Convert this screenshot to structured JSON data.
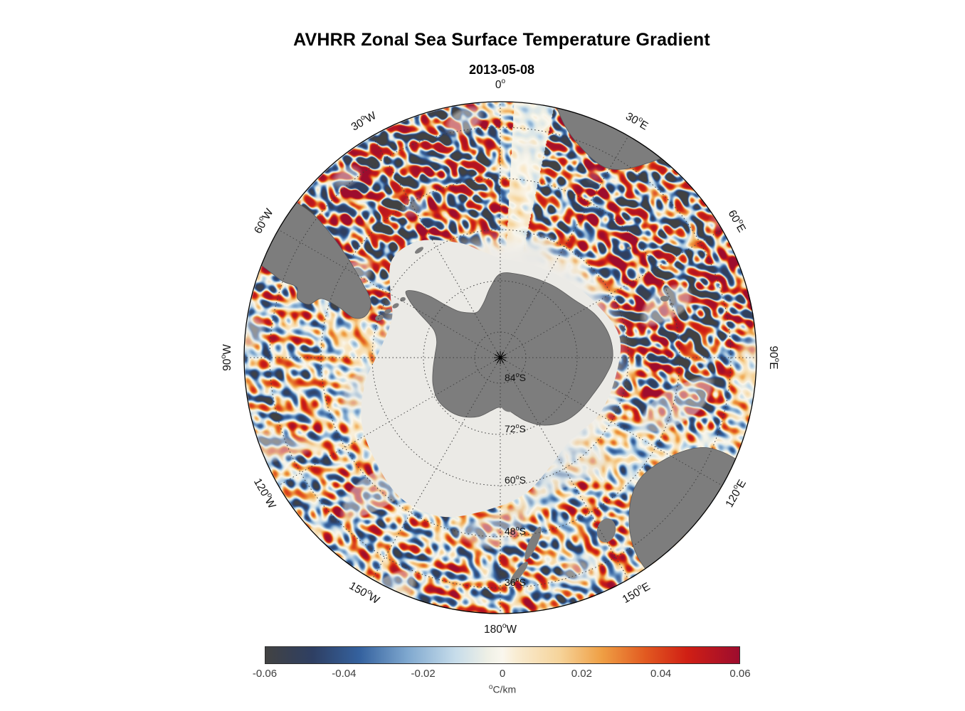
{
  "colors": {
    "background": "#ffffff",
    "land": "#7d7d7d",
    "land_edge": "#5a5a5a",
    "ice": "#ebeae6",
    "graticule": "#3c3c3c",
    "boundary": "#000000",
    "text": "#111111"
  },
  "chart_data": {
    "type": "heatmap",
    "projection": "south polar stereographic",
    "title": "AVHRR Zonal Sea Surface Temperature Gradient",
    "subtitle": "2013-05-08",
    "variable": "zonal sea surface temperature gradient",
    "units": "°C/km",
    "value_range": [
      -0.06,
      0.06
    ],
    "longitude_labels": [
      {
        "angle_deg": 0,
        "label": "0°"
      },
      {
        "angle_deg": 30,
        "label": "30°E"
      },
      {
        "angle_deg": 60,
        "label": "60°E"
      },
      {
        "angle_deg": 90,
        "label": "90°E"
      },
      {
        "angle_deg": 120,
        "label": "120°E"
      },
      {
        "angle_deg": 150,
        "label": "150°E"
      },
      {
        "angle_deg": 180,
        "label": "180°W"
      },
      {
        "angle_deg": 210,
        "label": "150°W"
      },
      {
        "angle_deg": 240,
        "label": "120°W"
      },
      {
        "angle_deg": 270,
        "label": "90°W"
      },
      {
        "angle_deg": 300,
        "label": "60°W"
      },
      {
        "angle_deg": 330,
        "label": "30°W"
      }
    ],
    "latitude_labels": [
      {
        "lat_deg": -84,
        "label": "84°S"
      },
      {
        "lat_deg": -72,
        "label": "72°S"
      },
      {
        "lat_deg": -60,
        "label": "60°S"
      },
      {
        "lat_deg": -48,
        "label": "48°S"
      },
      {
        "lat_deg": -36,
        "label": "36°S"
      }
    ],
    "colorbar": {
      "min": -0.06,
      "max": 0.06,
      "tick_labels": [
        "-0.06",
        "-0.04",
        "-0.02",
        "0",
        "0.02",
        "0.04",
        "0.06"
      ],
      "unit_label": "°C/km",
      "stops": [
        {
          "pos": 0.0,
          "color": "#424242"
        },
        {
          "pos": 0.1,
          "color": "#2e3f63"
        },
        {
          "pos": 0.2,
          "color": "#35629f"
        },
        {
          "pos": 0.3,
          "color": "#7fa8cf"
        },
        {
          "pos": 0.4,
          "color": "#c6dcea"
        },
        {
          "pos": 0.47,
          "color": "#eff0e6"
        },
        {
          "pos": 0.5,
          "color": "#faf7ee"
        },
        {
          "pos": 0.53,
          "color": "#f9ecd2"
        },
        {
          "pos": 0.62,
          "color": "#f6d49b"
        },
        {
          "pos": 0.71,
          "color": "#ef9f44"
        },
        {
          "pos": 0.8,
          "color": "#e25b21"
        },
        {
          "pos": 0.89,
          "color": "#d01f14"
        },
        {
          "pos": 1.0,
          "color": "#9d0c2e"
        }
      ]
    }
  }
}
